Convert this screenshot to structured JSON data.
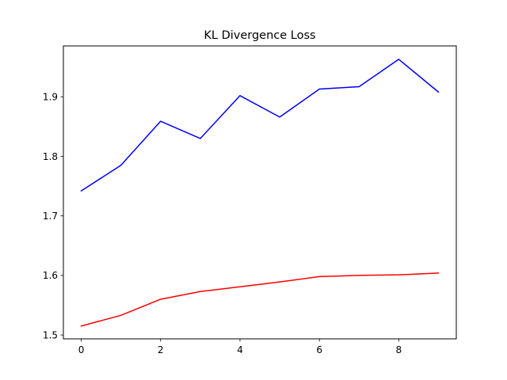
{
  "chart_data": {
    "type": "line",
    "title": "KL Divergence Loss",
    "xlabel": "",
    "ylabel": "",
    "x": [
      0,
      1,
      2,
      3,
      4,
      5,
      6,
      7,
      8,
      9
    ],
    "xlim": [
      -0.45,
      9.45
    ],
    "ylim": [
      1.4935,
      1.9855
    ],
    "xticks": [
      0,
      2,
      4,
      6,
      8
    ],
    "yticks": [
      1.5,
      1.6,
      1.7,
      1.8,
      1.9
    ],
    "xtick_labels": [
      "0",
      "2",
      "4",
      "6",
      "8"
    ],
    "ytick_labels": [
      "1.5",
      "1.6",
      "1.7",
      "1.8",
      "1.9"
    ],
    "grid": false,
    "legend": "none",
    "series": [
      {
        "color": "#0000ff",
        "values": [
          1.742,
          1.785,
          1.859,
          1.83,
          1.902,
          1.866,
          1.913,
          1.917,
          1.963,
          1.908
        ]
      },
      {
        "color": "#ff0000",
        "values": [
          1.515,
          1.533,
          1.56,
          1.573,
          1.581,
          1.589,
          1.598,
          1.6,
          1.601,
          1.604
        ]
      }
    ]
  }
}
